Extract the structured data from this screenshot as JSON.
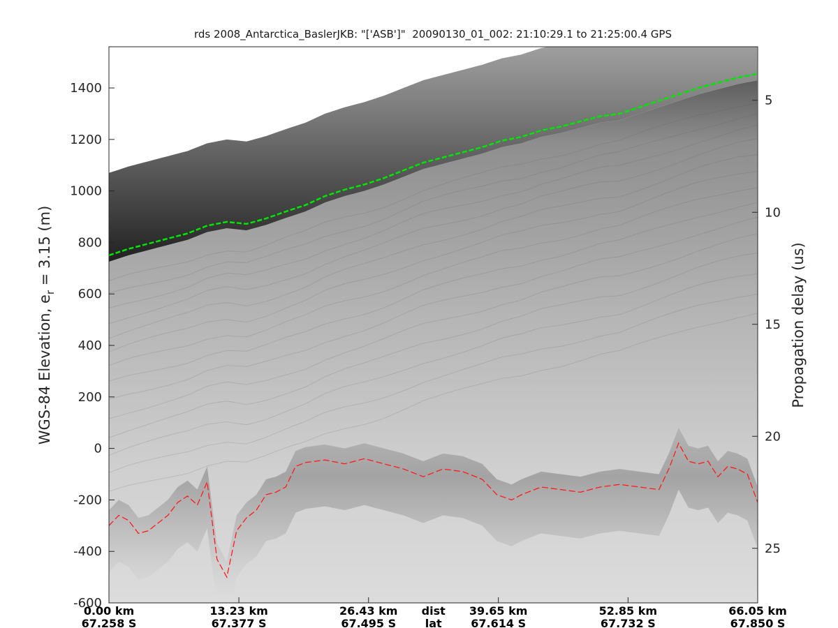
{
  "chart_data": {
    "type": "radargram",
    "title": "rds 2008_Antarctica_BaslerJKB: \"['ASB']\"  20090130_01_002: 21:10:29.1 to 21:25:00.4 GPS",
    "ylabel_main": "WGS-84 Elevation, e",
    "ylabel_sub": "r",
    "ylabel_tail": " = 3.15 (m)",
    "y2label": "Propagation delay (us)",
    "ylim": [
      -600,
      1560
    ],
    "y_ticks": [
      "1400",
      "1200",
      "1000",
      "800",
      "600",
      "400",
      "200",
      "0",
      "-200",
      "-400",
      "-600"
    ],
    "y_tick_values": [
      1400,
      1200,
      1000,
      800,
      600,
      400,
      200,
      0,
      -200,
      -400,
      -600
    ],
    "y2_ticks": [
      "5",
      "10",
      "15",
      "20",
      "25"
    ],
    "y2_tick_values": [
      5,
      10,
      15,
      20,
      25
    ],
    "y2_elevation_at_tick": [
      1352,
      917,
      482,
      47,
      -388
    ],
    "xlim": [
      0,
      66.05
    ],
    "x_tick_values": [
      0,
      13.23,
      26.43,
      39.65,
      52.85,
      66.05
    ],
    "x_ticks_dist": [
      "0.00 km",
      "13.23 km",
      "26.43 km",
      "39.65 km",
      "52.85 km",
      "66.05 km"
    ],
    "x_ticks_lat": [
      "67.258 S",
      "67.377 S",
      "67.495 S",
      "67.614 S",
      "67.732 S",
      "67.850 S"
    ],
    "x_row_labels": [
      "dist",
      "lat"
    ],
    "series": [
      {
        "name": "",
        "color": "#00e600",
        "style": "dashed",
        "x": [
          0,
          2,
          4,
          6,
          8,
          10,
          12,
          14,
          16,
          18,
          20,
          22,
          24,
          26,
          28,
          30,
          32,
          34,
          36,
          38,
          40,
          42,
          44,
          46,
          48,
          50,
          52,
          54,
          56,
          58,
          60,
          62,
          64,
          66.05
        ],
        "y": [
          750,
          775,
          795,
          815,
          835,
          865,
          880,
          872,
          893,
          920,
          945,
          980,
          1005,
          1025,
          1050,
          1080,
          1110,
          1130,
          1150,
          1170,
          1195,
          1210,
          1235,
          1250,
          1270,
          1290,
          1300,
          1325,
          1350,
          1375,
          1400,
          1420,
          1440,
          1455
        ]
      },
      {
        "name": "",
        "color": "#ff1a1a",
        "style": "dashed",
        "x": [
          0,
          1,
          2,
          3,
          4,
          5,
          6,
          7,
          8,
          9,
          10,
          11,
          12,
          13,
          14,
          15,
          16,
          17,
          18,
          19,
          20,
          22,
          24,
          26,
          28,
          30,
          32,
          34,
          36,
          38,
          39.5,
          41,
          42,
          44,
          46,
          48,
          50,
          52,
          54,
          56,
          57,
          58,
          59,
          60,
          61,
          62,
          63,
          64,
          65,
          66.05
        ],
        "y": [
          -300,
          -260,
          -280,
          -330,
          -320,
          -290,
          -260,
          -210,
          -185,
          -220,
          -130,
          -430,
          -500,
          -320,
          -270,
          -240,
          -180,
          -170,
          -150,
          -70,
          -55,
          -45,
          -60,
          -40,
          -60,
          -80,
          -110,
          -80,
          -90,
          -120,
          -180,
          -200,
          -180,
          -150,
          -160,
          -170,
          -150,
          -140,
          -150,
          -160,
          -80,
          20,
          -50,
          -60,
          -50,
          -110,
          -70,
          -80,
          -100,
          -210
        ]
      }
    ]
  }
}
